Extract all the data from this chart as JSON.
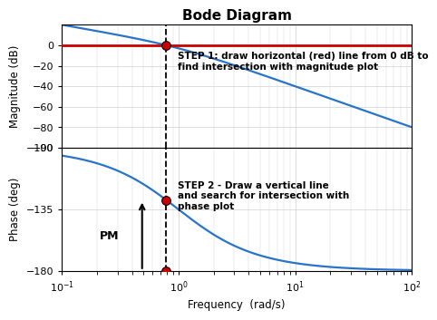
{
  "title": "Bode Diagram",
  "xlabel": "Frequency  (rad/s)",
  "ylabel_mag": "Magnitude (dB)",
  "ylabel_phase": "Phase (deg)",
  "freq_range": [
    0.1,
    100
  ],
  "mag_ylim": [
    -100,
    20
  ],
  "phase_ylim": [
    -180,
    -90
  ],
  "mag_yticks": [
    0,
    -20,
    -40,
    -60,
    -80,
    -100
  ],
  "phase_yticks": [
    -90,
    -135,
    -180
  ],
  "blue_color": "#2874c8",
  "red_color": "#cc0000",
  "dot_color": "#cc0000",
  "step1_text": "STEP 1: draw horizontal (red) line from 0 dB to\nfind intersection with magnitude plot",
  "step2_text": "STEP 2 - Draw a vertical line\nand search for intersection with\nphase plot",
  "pm_text": "PM",
  "background_color": "#ffffff",
  "grid_color": "#d0d0d0",
  "title_fontsize": 11,
  "label_fontsize": 8.5,
  "tick_fontsize": 8,
  "annot_fontsize": 7.5
}
